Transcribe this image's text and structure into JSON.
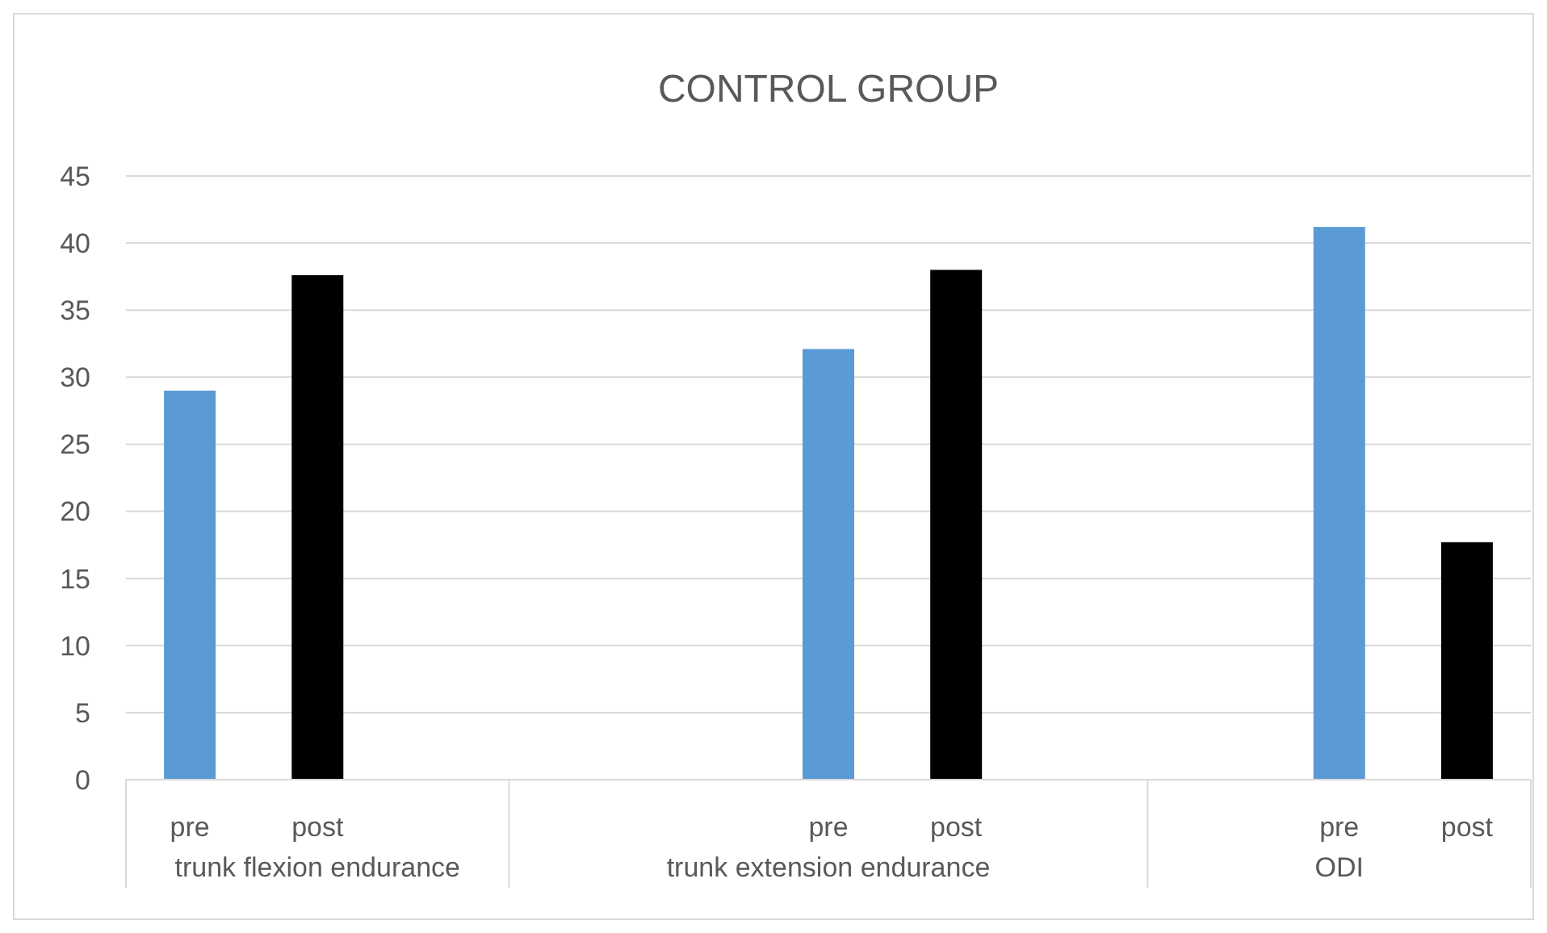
{
  "chart_data": {
    "type": "bar",
    "title": "CONTROL GROUP",
    "categories": [
      "pre",
      "post",
      null,
      null,
      null,
      "pre",
      "post",
      null,
      null,
      "pre",
      "post"
    ],
    "values": [
      29,
      37.6,
      null,
      null,
      null,
      32.1,
      38,
      null,
      null,
      41.2,
      17.7
    ],
    "colors": [
      "#5b9bd5",
      "#000000",
      null,
      null,
      null,
      "#5b9bd5",
      "#000000",
      null,
      null,
      "#5b9bd5",
      "#000000"
    ],
    "ylim": [
      0,
      45
    ],
    "yticks": [
      0,
      5,
      10,
      15,
      20,
      25,
      30,
      35,
      40,
      45
    ],
    "grid": "y",
    "annotations": [
      "trunk flexion endurance",
      "trunk extension endurance",
      "ODI"
    ]
  }
}
